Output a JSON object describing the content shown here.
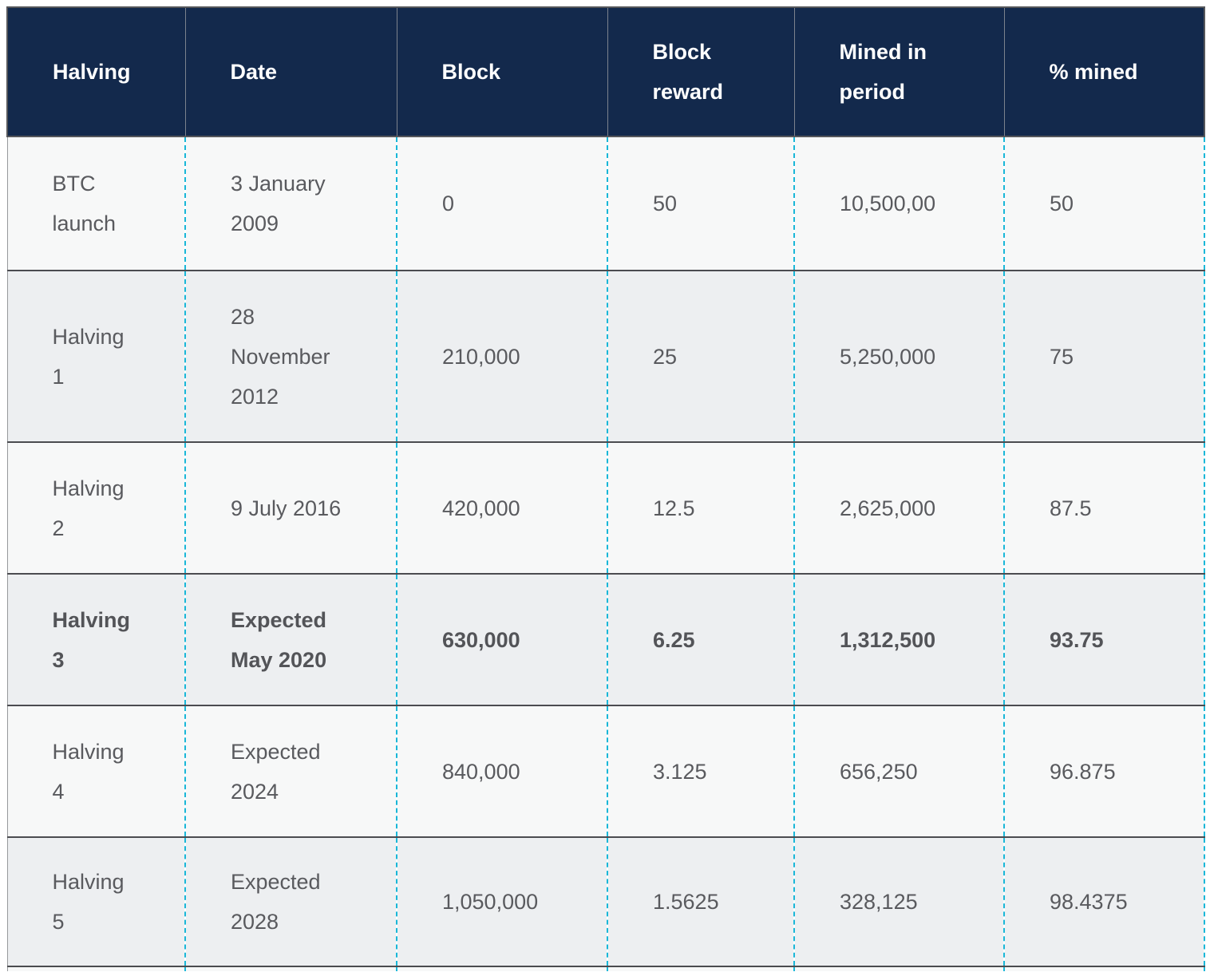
{
  "colors": {
    "header_background": "#13294c",
    "header_text": "#ffffff",
    "row_light": "#f7f8f8",
    "row_gray": "#edeff1",
    "body_text": "#595a5e",
    "column_divider_dashed": "#19b7d8",
    "row_divider": "#4b4c50"
  },
  "table": {
    "columns": [
      "Halving",
      "Date",
      "Block",
      "Block reward",
      "Mined in period",
      "% mined"
    ],
    "rows": [
      {
        "cells": [
          "BTC launch",
          "3 January 2009",
          "0",
          "50",
          "10,500,00",
          "50"
        ],
        "bold": false
      },
      {
        "cells": [
          "Halving 1",
          "28 November 2012",
          "210,000",
          "25",
          "5,250,000",
          "75"
        ],
        "bold": false
      },
      {
        "cells": [
          "Halving 2",
          "9 July 2016",
          "420,000",
          "12.5",
          "2,625,000",
          "87.5"
        ],
        "bold": false
      },
      {
        "cells": [
          "Halving 3",
          "Expected May 2020",
          "630,000",
          "6.25",
          "1,312,500",
          "93.75"
        ],
        "bold": true
      },
      {
        "cells": [
          "Halving 4",
          "Expected 2024",
          "840,000",
          "3.125",
          "656,250",
          "96.875"
        ],
        "bold": false
      },
      {
        "cells": [
          "Halving 5",
          "Expected 2028",
          "1,050,000",
          "1.5625",
          "328,125",
          "98.4375"
        ],
        "bold": false
      }
    ]
  },
  "chart_data": {
    "type": "table",
    "title": "",
    "columns": [
      "Halving",
      "Date",
      "Block",
      "Block reward",
      "Mined in period",
      "% mined"
    ],
    "rows": [
      [
        "BTC launch",
        "3 January 2009",
        "0",
        "50",
        "10,500,00",
        "50"
      ],
      [
        "Halving 1",
        "28 November 2012",
        "210,000",
        "25",
        "5,250,000",
        "75"
      ],
      [
        "Halving 2",
        "9 July 2016",
        "420,000",
        "12.5",
        "2,625,000",
        "87.5"
      ],
      [
        "Halving 3",
        "Expected May 2020",
        "630,000",
        "6.25",
        "1,312,500",
        "93.75"
      ],
      [
        "Halving 4",
        "Expected 2024",
        "840,000",
        "3.125",
        "656,250",
        "96.875"
      ],
      [
        "Halving 5",
        "Expected 2028",
        "1,050,000",
        "1.5625",
        "328,125",
        "98.4375"
      ]
    ],
    "highlighted_row": "Halving 3",
    "layout_hints": {
      "header_style": "dark navy with white bold text",
      "column_separators": "dashed cyan vertical lines in body",
      "row_striping": "alternating light / gray"
    }
  }
}
